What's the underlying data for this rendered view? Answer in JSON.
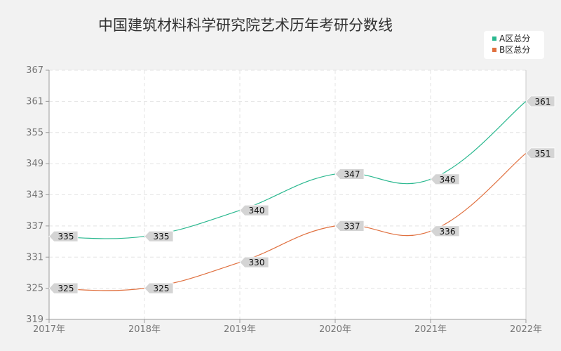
{
  "chart_data": {
    "type": "line",
    "title": "中国建筑材料科学研究院艺术历年考研分数线",
    "categories": [
      "2017年",
      "2018年",
      "2019年",
      "2020年",
      "2021年",
      "2022年"
    ],
    "series": [
      {
        "name": "A区总分",
        "values": [
          335,
          335,
          340,
          347,
          346,
          361
        ],
        "color": "#2ab88f"
      },
      {
        "name": "B区总分",
        "values": [
          325,
          325,
          330,
          337,
          336,
          351
        ],
        "color": "#e0703f"
      }
    ],
    "yticks": [
      319,
      325,
      331,
      337,
      343,
      349,
      355,
      361,
      367
    ],
    "ylim": [
      319,
      367
    ],
    "grid": true,
    "legend_position": "top-right",
    "colors": {
      "background": "#f2f2f2",
      "plot_background": "#ffffff",
      "label_bg": "#d4d4d4"
    }
  }
}
